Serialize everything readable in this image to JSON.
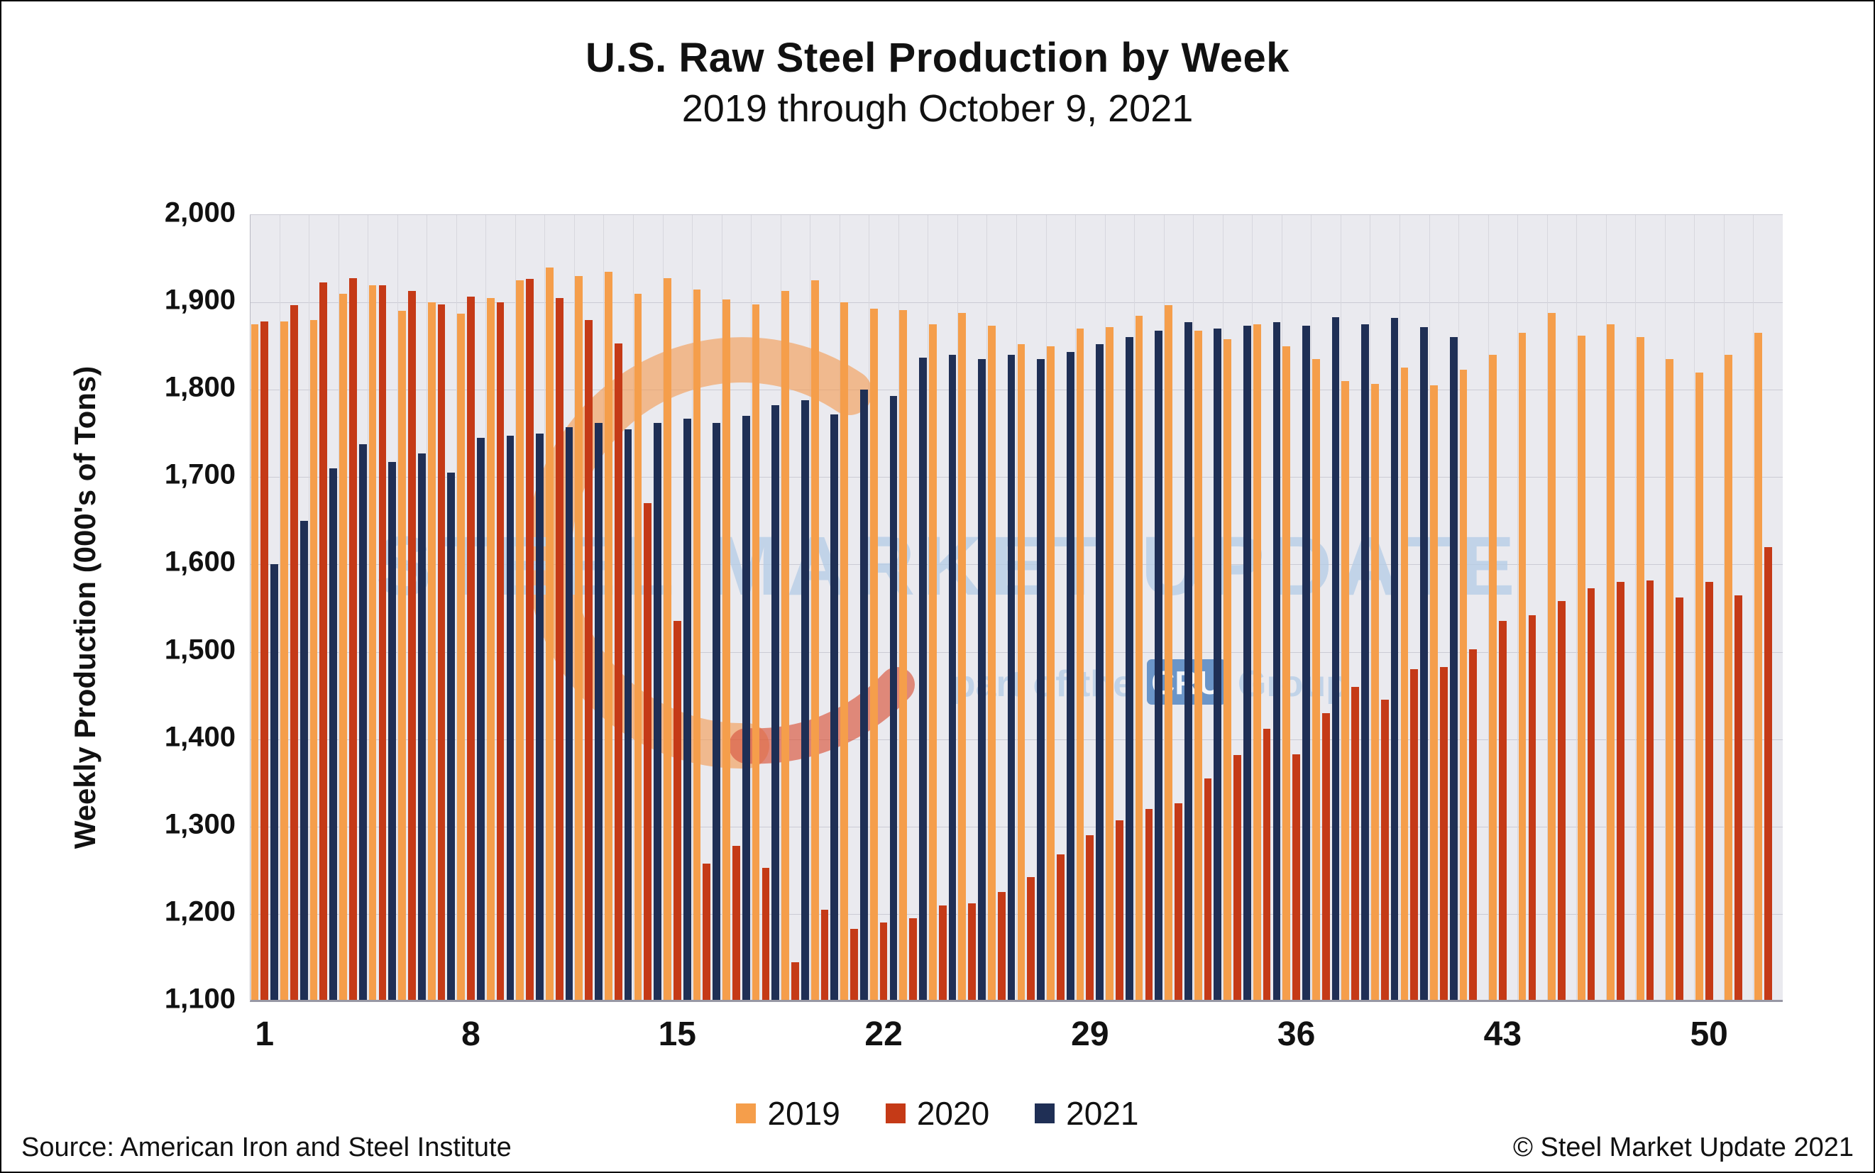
{
  "title": "U.S. Raw Steel Production by Week",
  "subtitle": "2019 through October 9, 2021",
  "footer": {
    "source": "Source: American Iron and Steel Institute",
    "copyright": "© Steel Market Update 2021"
  },
  "watermark": {
    "line1": "STEEL MARKET UPDATE",
    "line2_prefix": "part of the",
    "badge": "CRU",
    "line2_suffix": "Group",
    "text_color": "#B5CCE6",
    "badge_color": "#2F6DB5",
    "swoosh_orange": "#F49B52",
    "swoosh_red": "#D9472B"
  },
  "chart_data": {
    "type": "bar",
    "title": "U.S. Raw Steel Production by Week",
    "subtitle": "2019 through October 9, 2021",
    "xlabel": "",
    "ylabel": "Weekly Production (000's of Tons)",
    "ylim": [
      1100,
      2000
    ],
    "ytick_step": 100,
    "yticks": [
      "1,100",
      "1,200",
      "1,300",
      "1,400",
      "1,500",
      "1,600",
      "1,700",
      "1,800",
      "1,900",
      "2,000"
    ],
    "xticks": [
      1,
      8,
      15,
      22,
      29,
      36,
      43,
      50
    ],
    "weeks": 52,
    "grid": true,
    "legend_position": "bottom",
    "plot_bg": "#EAEAEF",
    "series": [
      {
        "name": "2019",
        "color": "#F59E4B",
        "values": [
          1875,
          1878,
          1880,
          1910,
          1920,
          1890,
          1900,
          1887,
          1905,
          1925,
          1940,
          1930,
          1935,
          1910,
          1928,
          1915,
          1903,
          1898,
          1913,
          1925,
          1900,
          1893,
          1891,
          1875,
          1888,
          1873,
          1852,
          1850,
          1870,
          1872,
          1885,
          1897,
          1868,
          1858,
          1875,
          1850,
          1835,
          1810,
          1807,
          1825,
          1805,
          1823,
          1840,
          1865,
          1888,
          1862,
          1875,
          1860,
          1835,
          1820,
          1840,
          1865
        ]
      },
      {
        "name": "2020",
        "color": "#C53A17",
        "values": [
          1878,
          1897,
          1923,
          1928,
          1920,
          1913,
          1898,
          1907,
          1900,
          1927,
          1905,
          1880,
          1853,
          1670,
          1535,
          1258,
          1278,
          1253,
          1145,
          1205,
          1183,
          1190,
          1195,
          1210,
          1212,
          1225,
          1242,
          1268,
          1290,
          1307,
          1320,
          1327,
          1355,
          1382,
          1412,
          1383,
          1430,
          1460,
          1445,
          1480,
          1483,
          1503,
          1535,
          1542,
          1558,
          1573,
          1580,
          1582,
          1562,
          1580,
          1565,
          1620
        ]
      },
      {
        "name": "2021",
        "color": "#1F2F55",
        "values": [
          1600,
          1650,
          1710,
          1738,
          1717,
          1727,
          1705,
          1745,
          1747,
          1750,
          1757,
          1762,
          1755,
          1762,
          1767,
          1762,
          1770,
          1782,
          1788,
          1772,
          1800,
          1793,
          1837,
          1840,
          1835,
          1840,
          1835,
          1843,
          1852,
          1860,
          1868,
          1877,
          1870,
          1873,
          1877,
          1873,
          1883,
          1875,
          1882,
          1872,
          1860,
          null,
          null,
          null,
          null,
          null,
          null,
          null,
          null,
          null,
          null,
          null
        ]
      }
    ]
  }
}
